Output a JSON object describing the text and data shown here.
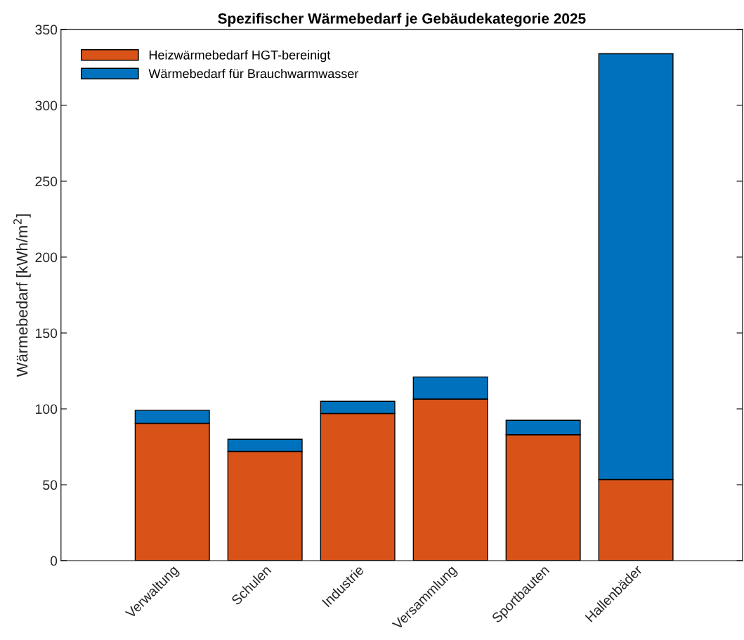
{
  "chart_data": {
    "type": "bar",
    "stacked": true,
    "title": "Spezifischer Wärmebedarf je Gebäudekategorie 2025",
    "ylabel": "Wärmebedarf [kWh/m$^{2}$]",
    "categories": [
      "Verwaltung",
      "Schulen",
      "Industrie",
      "Versammlung",
      "Sportbauten",
      "Hallenbäder"
    ],
    "series": [
      {
        "name": "Heizwärmebedarf HGT-bereinigt",
        "color": "#d95319",
        "values": [
          90.5,
          72,
          97,
          106.5,
          83,
          53.5
        ]
      },
      {
        "name": "Wärmebedarf für Brauchwarmwasser",
        "color": "#0072bd",
        "values": [
          8.5,
          8,
          8,
          14.5,
          9.5,
          280.5
        ]
      }
    ],
    "ylim": [
      0,
      350
    ],
    "yticks": [
      0,
      50,
      100,
      150,
      200,
      250,
      300,
      350
    ],
    "grid": false,
    "legend": "top left"
  }
}
